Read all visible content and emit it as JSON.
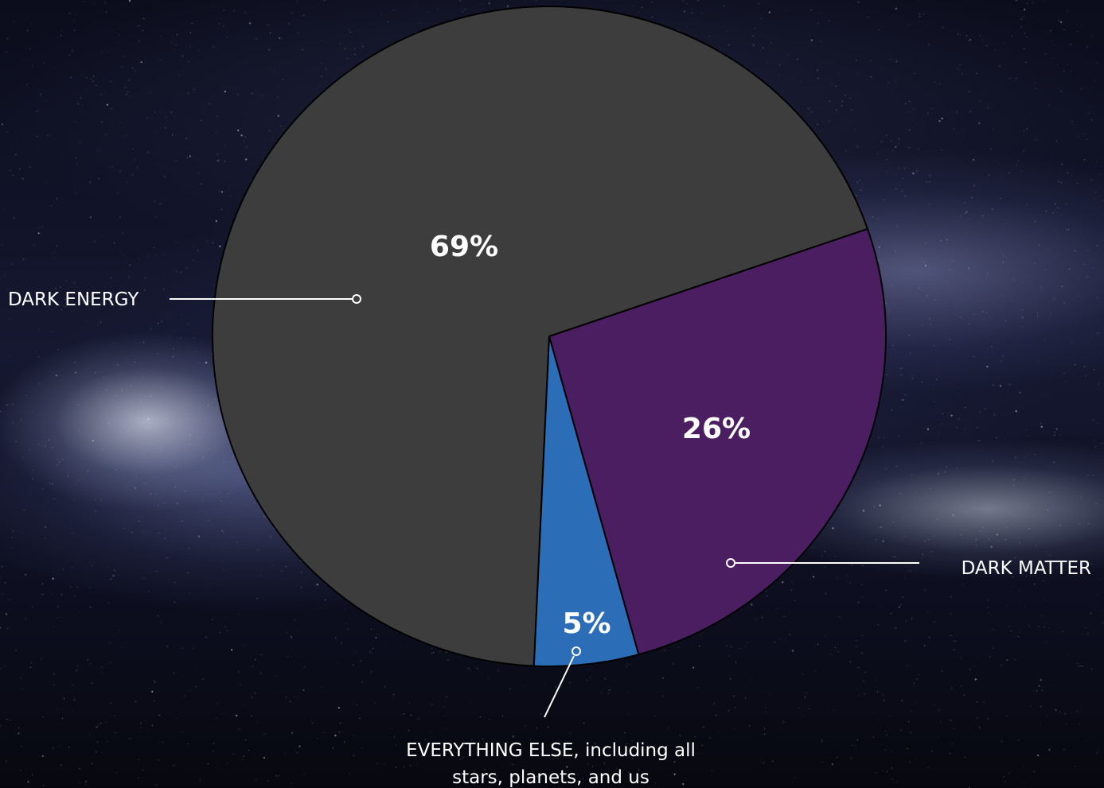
{
  "colors": {
    "dark_energy": "#3d3d3d",
    "dark_matter": "#4b1e61",
    "everything_else": "#2c6db7",
    "outline": "#000000",
    "leader": "#ffffff"
  },
  "chart_data": {
    "type": "pie",
    "title": "",
    "slices": [
      {
        "name": "DARK ENERGY",
        "value": 69,
        "label": "69%"
      },
      {
        "name": "DARK MATTER",
        "value": 26,
        "label": "26%"
      },
      {
        "name": "EVERYTHING ELSE, including all stars, planets, and us",
        "value": 5,
        "label": "5%"
      }
    ]
  },
  "labels": {
    "dark_energy": "DARK ENERGY",
    "dark_matter": "DARK MATTER",
    "everything_else_line1": "EVERYTHING ELSE, including all",
    "everything_else_line2": "stars, planets, and us"
  }
}
